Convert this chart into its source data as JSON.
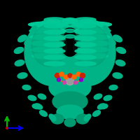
{
  "background_color": "#000000",
  "figure_size": [
    2.0,
    2.0
  ],
  "dpi": 100,
  "protein_main": "#00b386",
  "protein_dark": "#009970",
  "protein_mid": "#00c896",
  "ligand_red": "#cc2200",
  "ligand_orange": "#ff6600",
  "ligand_purple": "#8800cc",
  "ligand_pink": "#cc44aa",
  "ligand_blue": "#0044cc",
  "metal_color": "#aaaaaa",
  "axis_x_color": "#0000ee",
  "axis_y_color": "#00bb00",
  "axis_origin_color": "#cc0000"
}
